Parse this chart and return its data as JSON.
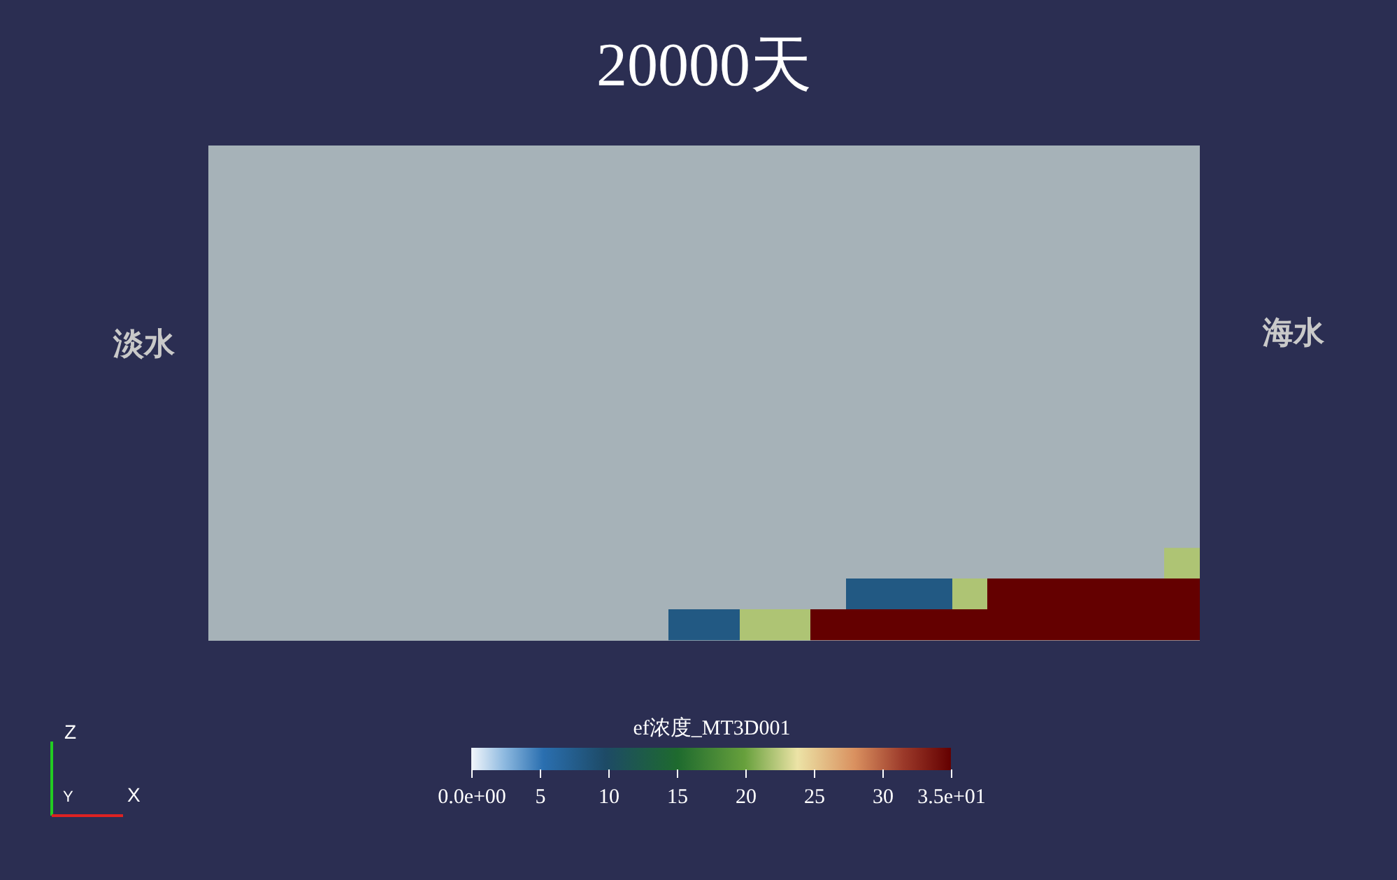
{
  "chart_data": {
    "type": "heatmap",
    "title": "20000天",
    "clabel": "ef浓度_MT3D001",
    "categories": [
      null,
      null,
      null,
      null,
      null,
      null,
      null,
      null,
      null,
      null,
      null,
      null,
      null,
      null,
      null,
      null,
      null,
      null,
      null,
      null,
      null,
      null,
      null,
      null,
      null,
      null,
      null,
      null
    ],
    "y_categories": [
      null,
      null,
      null
    ],
    "cells": [
      [
        null,
        null,
        null,
        null,
        null,
        null,
        null,
        null,
        null,
        null,
        null,
        null,
        null,
        null,
        null,
        null,
        null,
        null,
        null,
        null,
        null,
        null,
        null,
        null,
        null,
        null,
        null,
        22
      ],
      [
        null,
        null,
        null,
        null,
        null,
        null,
        null,
        null,
        null,
        null,
        null,
        null,
        null,
        null,
        null,
        null,
        null,
        null,
        8,
        8,
        8,
        22,
        35,
        35,
        35,
        35,
        35,
        35
      ],
      [
        null,
        null,
        null,
        null,
        null,
        null,
        null,
        null,
        null,
        null,
        null,
        null,
        null,
        8,
        8,
        22,
        22,
        35,
        35,
        35,
        35,
        35,
        35,
        35,
        35,
        35,
        35,
        35
      ]
    ],
    "clim": [
      0,
      35
    ],
    "cticks": [
      {
        "value": 0,
        "label": "0.0e+00"
      },
      5,
      10,
      15,
      20,
      25,
      30,
      {
        "value": 35,
        "label": "3.5e+01"
      }
    ],
    "tick_labels": false,
    "annotations": [
      "淡水",
      "海水",
      "Z",
      "Y",
      "X"
    ]
  }
}
